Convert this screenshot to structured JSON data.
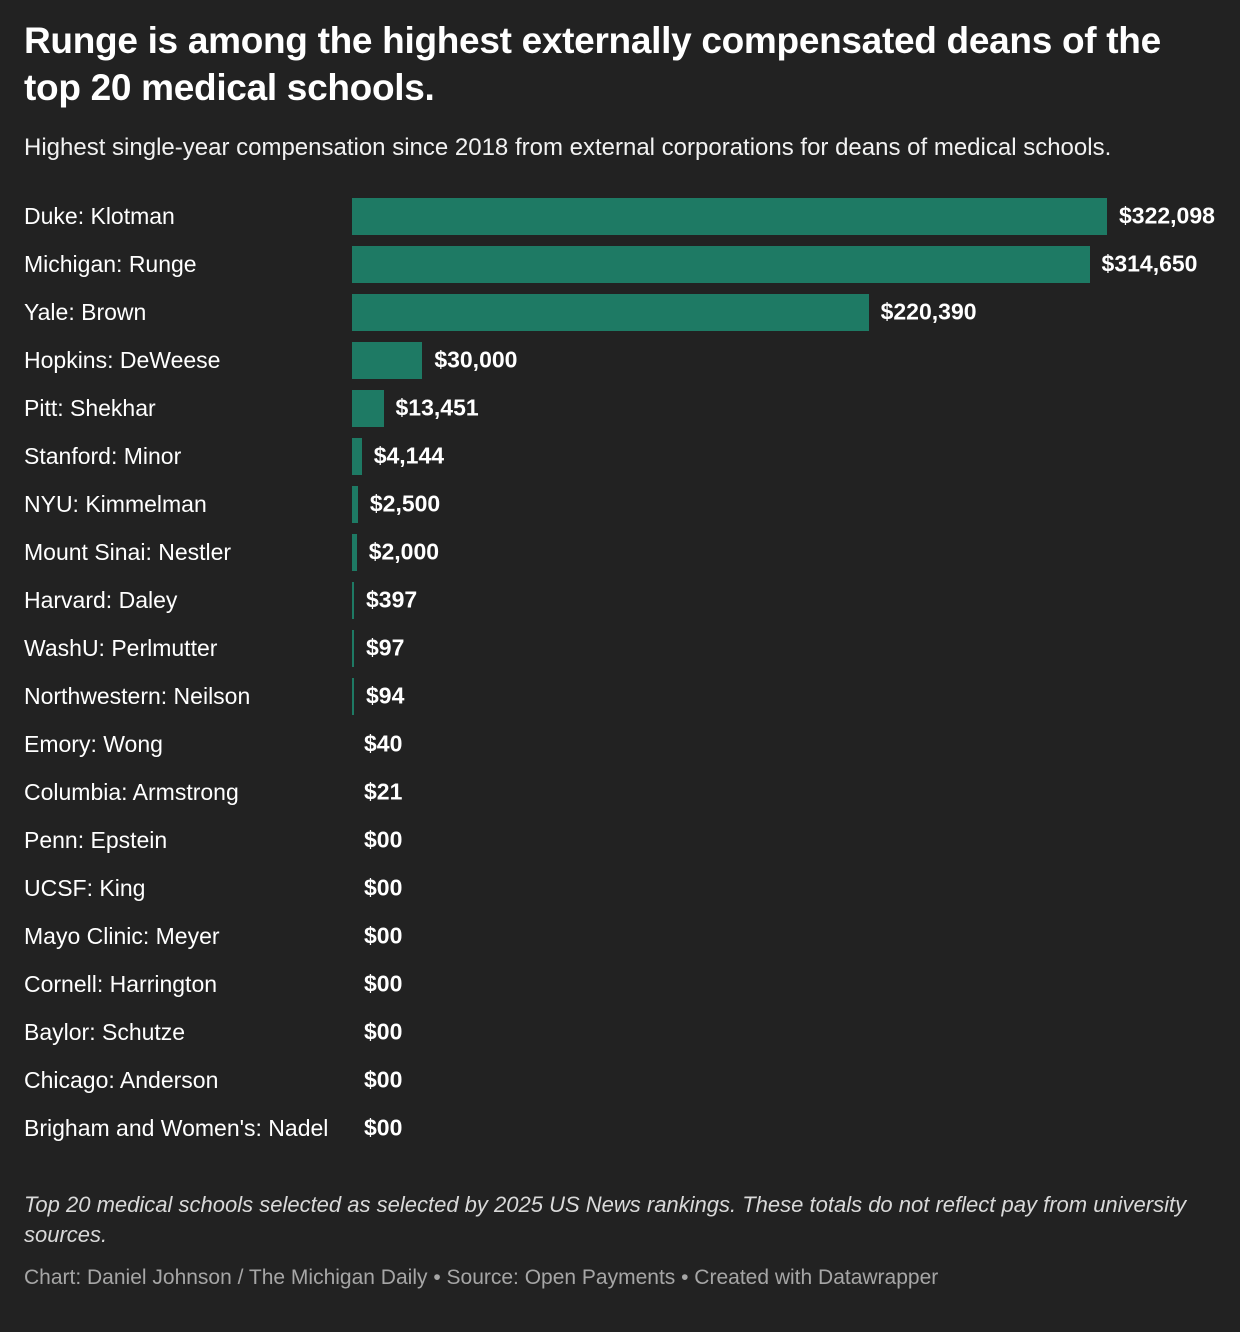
{
  "header": {
    "title": "Runge is among the highest externally compensated deans of the top 20 medical schools.",
    "subtitle": "Highest single-year compensation since 2018 from external corporations for deans of medical schools."
  },
  "chart_data": {
    "type": "bar",
    "orientation": "horizontal",
    "title": "Runge is among the highest externally compensated deans of the top 20 medical schools.",
    "subtitle": "Highest single-year compensation since 2018 from external corporations for deans of medical schools.",
    "categories": [
      "Duke: Klotman",
      "Michigan: Runge",
      "Yale: Brown",
      "Hopkins: DeWeese",
      "Pitt: Shekhar",
      "Stanford: Minor",
      "NYU: Kimmelman",
      "Mount Sinai: Nestler",
      "Harvard: Daley",
      "WashU: Perlmutter",
      "Northwestern: Neilson",
      "Emory: Wong",
      "Columbia: Armstrong",
      "Penn: Epstein",
      "UCSF: King",
      "Mayo Clinic: Meyer",
      "Cornell: Harrington",
      "Baylor: Schutze",
      "Chicago: Anderson",
      "Brigham and Women's: Nadel"
    ],
    "values": [
      322098,
      314650,
      220390,
      30000,
      13451,
      4144,
      2500,
      2000,
      397,
      97,
      94,
      40,
      21,
      0,
      0,
      0,
      0,
      0,
      0,
      0
    ],
    "value_labels": [
      "$322,098",
      "$314,650",
      "$220,390",
      "$30,000",
      "$13,451",
      "$4,144",
      "$2,500",
      "$2,000",
      "$397",
      "$97",
      "$94",
      "$40",
      "$21",
      "$00",
      "$00",
      "$00",
      "$00",
      "$00",
      "$00",
      "$00"
    ],
    "xlim": [
      0,
      322098
    ],
    "bar_color": "#1e7a64",
    "background_color": "#222222",
    "text_color": "#ffffff",
    "grid": false,
    "legend": false
  },
  "footer": {
    "note": "Top 20 medical schools selected as selected by 2025 US News rankings. These totals do not reflect pay from university sources.",
    "credit": "Chart: Daniel Johnson / The Michigan Daily • Source: Open Payments • Created with Datawrapper"
  }
}
